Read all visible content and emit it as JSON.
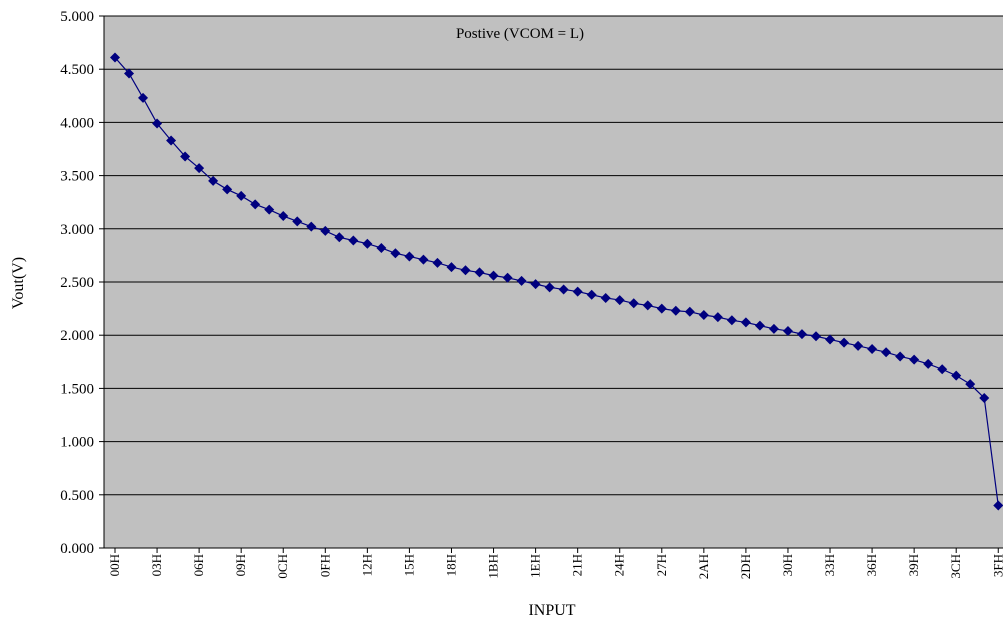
{
  "chart_data": {
    "type": "line",
    "annotation": "Postive (VCOM = L)",
    "xlabel": "INPUT",
    "ylabel": "Vout(V)",
    "ylim": [
      0,
      5
    ],
    "y_ticks": [
      "0.000",
      "0.500",
      "1.000",
      "1.500",
      "2.000",
      "2.500",
      "3.000",
      "3.500",
      "4.000",
      "4.500",
      "5.000"
    ],
    "x_tick_labels": [
      "00H",
      "03H",
      "06H",
      "09H",
      "0CH",
      "0FH",
      "12H",
      "15H",
      "18H",
      "1BH",
      "1EH",
      "21H",
      "24H",
      "27H",
      "2AH",
      "2DH",
      "30H",
      "33H",
      "36H",
      "39H",
      "3CH",
      "3FH"
    ],
    "grid": "horizontal",
    "legend": "none",
    "colors": {
      "plot_background": "#c0c0c0",
      "gridline": "#000000",
      "line": "#00007f",
      "marker": "#00007f"
    },
    "series": [
      {
        "values": [
          4.61,
          4.46,
          4.23,
          3.99,
          3.83,
          3.68,
          3.57,
          3.45,
          3.37,
          3.31,
          3.23,
          3.18,
          3.12,
          3.07,
          3.02,
          2.98,
          2.92,
          2.89,
          2.86,
          2.82,
          2.77,
          2.74,
          2.71,
          2.68,
          2.64,
          2.61,
          2.59,
          2.56,
          2.54,
          2.51,
          2.48,
          2.45,
          2.43,
          2.41,
          2.38,
          2.35,
          2.33,
          2.3,
          2.28,
          2.25,
          2.23,
          2.22,
          2.19,
          2.17,
          2.14,
          2.12,
          2.09,
          2.06,
          2.04,
          2.01,
          1.99,
          1.96,
          1.93,
          1.9,
          1.87,
          1.84,
          1.8,
          1.77,
          1.73,
          1.68,
          1.62,
          1.54,
          1.41,
          0.4
        ]
      }
    ]
  }
}
